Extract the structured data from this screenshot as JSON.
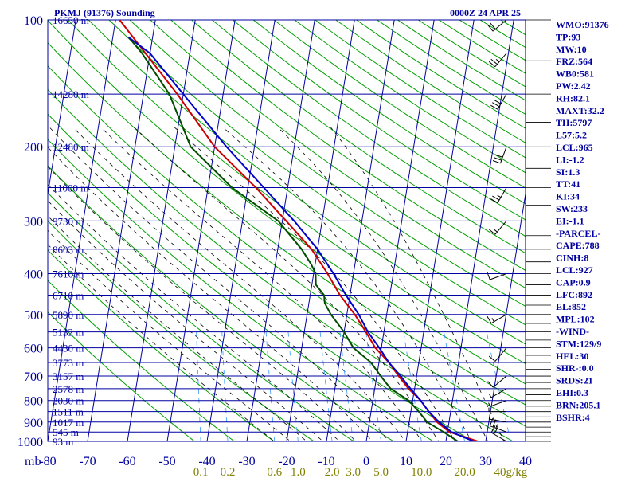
{
  "chart_data": {
    "type": "line",
    "title": "PKMJ (91376) Sounding",
    "datetime": "0000Z 24 APR 25",
    "xlabel": "",
    "ylabel": "mb",
    "xlim": [
      -80,
      40
    ],
    "ylim": [
      1000,
      100
    ],
    "y_log_scale": true,
    "grid": true,
    "x_ticks": [
      "-80",
      "-70",
      "-60",
      "-50",
      "-40",
      "-30",
      "-20",
      "-10",
      "0",
      "10",
      "20",
      "30",
      "40"
    ],
    "pressure_ticks": [
      "100",
      "200",
      "300",
      "400",
      "500",
      "600",
      "700",
      "800",
      "900",
      "1000"
    ],
    "height_labels": [
      {
        "p": 100,
        "text": "16650 m"
      },
      {
        "p": 150,
        "text": "14280 m"
      },
      {
        "p": 200,
        "text": "12480 m"
      },
      {
        "p": 250,
        "text": "11000 m"
      },
      {
        "p": 300,
        "text": "9730 m"
      },
      {
        "p": 350,
        "text": "8603 m"
      },
      {
        "p": 400,
        "text": "7610 m"
      },
      {
        "p": 450,
        "text": "6710 m"
      },
      {
        "p": 500,
        "text": "5890 m"
      },
      {
        "p": 550,
        "text": "5132 m"
      },
      {
        "p": 600,
        "text": "4430 m"
      },
      {
        "p": 650,
        "text": "3773 m"
      },
      {
        "p": 700,
        "text": "3157 m"
      },
      {
        "p": 750,
        "text": "2578 m"
      },
      {
        "p": 800,
        "text": "2030 m"
      },
      {
        "p": 850,
        "text": "1511 m"
      },
      {
        "p": 900,
        "text": "1017 m"
      },
      {
        "p": 950,
        "text": "545 m"
      },
      {
        "p": 1000,
        "text": "93 m"
      }
    ],
    "mixing_ratio_labels": [
      "0.1",
      "0.2",
      "0.6",
      "1.0",
      "2.0",
      "3.0",
      "5.0",
      "10.0",
      "20.0",
      "40g/kg"
    ],
    "mixing_ratio_values": [
      0.1,
      0.2,
      0.6,
      1.0,
      2.0,
      3.0,
      5.0,
      10.0,
      20.0,
      40.0
    ],
    "series": [
      {
        "color": "#cc0000",
        "points": [
          [
            1000,
            28
          ],
          [
            950,
            20.5
          ],
          [
            900,
            17
          ],
          [
            850,
            14.5
          ],
          [
            800,
            12
          ],
          [
            750,
            8.5
          ],
          [
            700,
            5.5
          ],
          [
            650,
            2.5
          ],
          [
            600,
            -1.5
          ],
          [
            550,
            -4.5
          ],
          [
            500,
            -8
          ],
          [
            450,
            -12.5
          ],
          [
            400,
            -16.5
          ],
          [
            350,
            -21.5
          ],
          [
            300,
            -29
          ],
          [
            250,
            -38
          ],
          [
            200,
            -50
          ],
          [
            150,
            -61.5
          ],
          [
            100,
            -79
          ]
        ]
      },
      {
        "color": "#004d00",
        "points": [
          [
            1000,
            23
          ],
          [
            950,
            19
          ],
          [
            900,
            14.5
          ],
          [
            850,
            12
          ],
          [
            800,
            9
          ],
          [
            750,
            4
          ],
          [
            700,
            1
          ],
          [
            650,
            -2
          ],
          [
            600,
            -7
          ],
          [
            550,
            -10
          ],
          [
            500,
            -14
          ],
          [
            470,
            -16
          ],
          [
            450,
            -16.5
          ],
          [
            425,
            -19
          ],
          [
            400,
            -19.5
          ],
          [
            380,
            -21
          ],
          [
            350,
            -24
          ],
          [
            300,
            -31
          ],
          [
            250,
            -44
          ],
          [
            200,
            -56
          ],
          [
            150,
            -63.5
          ],
          [
            120,
            -72
          ],
          [
            110,
            -76
          ]
        ]
      },
      {
        "color": "#0000cc",
        "points": [
          [
            1000,
            27
          ],
          [
            950,
            21
          ],
          [
            900,
            17.5
          ],
          [
            850,
            14.5
          ],
          [
            800,
            12
          ],
          [
            750,
            9
          ],
          [
            700,
            6
          ],
          [
            650,
            2.5
          ],
          [
            600,
            -0.5
          ],
          [
            550,
            -4
          ],
          [
            500,
            -7
          ],
          [
            450,
            -11
          ],
          [
            400,
            -15
          ],
          [
            350,
            -20
          ],
          [
            300,
            -27
          ],
          [
            250,
            -36
          ],
          [
            200,
            -47
          ],
          [
            150,
            -60
          ],
          [
            120,
            -70
          ],
          [
            110,
            -76
          ]
        ]
      }
    ],
    "wind_barbs": [
      {
        "p": 1000,
        "dir": 300,
        "kt": 20
      },
      {
        "p": 950,
        "dir": 290,
        "kt": 25
      },
      {
        "p": 900,
        "dir": 280,
        "kt": 10
      },
      {
        "p": 850,
        "dir": 270,
        "kt": 5
      },
      {
        "p": 800,
        "dir": 250,
        "kt": 5
      },
      {
        "p": 750,
        "dir": 240,
        "kt": 5
      },
      {
        "p": 700,
        "dir": 230,
        "kt": 10
      },
      {
        "p": 600,
        "dir": 220,
        "kt": 10
      },
      {
        "p": 500,
        "dir": 240,
        "kt": 15
      },
      {
        "p": 400,
        "dir": 250,
        "kt": 10
      },
      {
        "p": 300,
        "dir": 220,
        "kt": 15
      },
      {
        "p": 250,
        "dir": 210,
        "kt": 25
      },
      {
        "p": 200,
        "dir": 200,
        "kt": 30
      },
      {
        "p": 150,
        "dir": 210,
        "kt": 30
      },
      {
        "p": 120,
        "dir": 220,
        "kt": 25
      },
      {
        "p": 100,
        "dir": 230,
        "kt": 20
      }
    ]
  },
  "indices": [
    "WMO:91376",
    "TP:93",
    "MW:10",
    "FRZ:564",
    "WB0:581",
    "PW:2.42",
    "RH:82.1",
    "MAXT:32.2",
    "TH:5797",
    "L57:5.2",
    "LCL:965",
    "LI:-1.2",
    "SI:1.3",
    "TT:41",
    "KI:34",
    "SW:233",
    "EI:-1.1",
    "-PARCEL-",
    "CAPE:788",
    "CINH:8",
    "LCL:927",
    "CAP:0.9",
    "LFC:892",
    "EL:852",
    "MPL:102",
    "-WIND-",
    "STM:129/9",
    "HEL:30",
    "SHR-:0.0",
    "SRDS:21",
    "EHI:0.3",
    "BRN:205.1",
    "BSHR:4"
  ],
  "colors": {
    "grid": "#0000a0",
    "dry_adiabat": "#00a000",
    "moist_adiabat": "#000000",
    "mixing_ratio": "#3399ff",
    "text": "#0000a0",
    "mix_label": "#808000"
  }
}
